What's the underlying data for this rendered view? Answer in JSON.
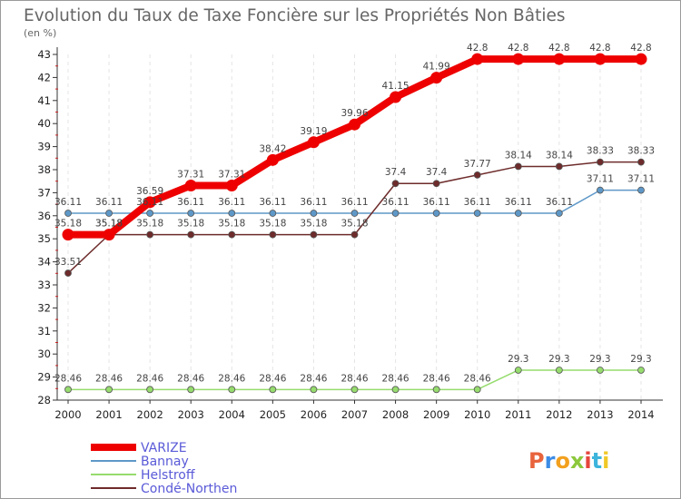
{
  "chart_data": {
    "type": "line",
    "title": "Evolution du Taux de Taxe Foncière sur les Propriétés Non Bâties",
    "subtitle": "(en %)",
    "xlabel": "",
    "ylabel": "",
    "ylim": [
      28,
      43
    ],
    "yticks": [
      "28",
      "29",
      "30",
      "31",
      "32",
      "33",
      "34",
      "35",
      "36",
      "37",
      "38",
      "39",
      "40",
      "41",
      "42",
      "43"
    ],
    "categories": [
      "2000",
      "2001",
      "2002",
      "2003",
      "2004",
      "2005",
      "2006",
      "2007",
      "2008",
      "2009",
      "2010",
      "2011",
      "2012",
      "2013",
      "2014"
    ],
    "grid": "vertical dashed",
    "legend_position": "bottom-left",
    "series": [
      {
        "name": "VARIZE",
        "color": "#ee0000",
        "values": [
          35.18,
          35.18,
          36.59,
          37.31,
          37.31,
          38.42,
          39.19,
          39.96,
          41.15,
          41.99,
          42.8,
          42.8,
          42.8,
          42.8,
          42.8
        ],
        "labels": [
          "35.18",
          "35.18",
          "36.59",
          "37.31",
          "37.31",
          "38.42",
          "39.19",
          "39.96",
          "41.15",
          "41.99",
          "42.8",
          "42.8",
          "42.8",
          "42.8",
          "42.8"
        ]
      },
      {
        "name": "Bannay",
        "color": "#5e98c8",
        "values": [
          36.11,
          36.11,
          36.11,
          36.11,
          36.11,
          36.11,
          36.11,
          36.11,
          36.11,
          36.11,
          36.11,
          36.11,
          36.11,
          37.11,
          37.11
        ],
        "labels": [
          "36.11",
          "36.11",
          "36.11",
          "36.11",
          "36.11",
          "36.11",
          "36.11",
          "36.11",
          "36.11",
          "36.11",
          "36.11",
          "36.11",
          "36.11",
          "37.11",
          "37.11"
        ]
      },
      {
        "name": "Helstroff",
        "color": "#96dc6e",
        "values": [
          28.46,
          28.46,
          28.46,
          28.46,
          28.46,
          28.46,
          28.46,
          28.46,
          28.46,
          28.46,
          28.46,
          29.3,
          29.3,
          29.3,
          29.3
        ],
        "labels": [
          "28.46",
          "28.46",
          "28.46",
          "28.46",
          "28.46",
          "28.46",
          "28.46",
          "28.46",
          "28.46",
          "28.46",
          "28.46",
          "29.3",
          "29.3",
          "29.3",
          "29.3"
        ]
      },
      {
        "name": "Condé-Northen",
        "color": "#6e2b2b",
        "values": [
          33.51,
          35.18,
          35.18,
          35.18,
          35.18,
          35.18,
          35.18,
          35.18,
          37.4,
          37.4,
          37.77,
          38.14,
          38.14,
          38.33,
          38.33
        ],
        "labels": [
          "33.51",
          "35.18",
          "35.18",
          "35.18",
          "35.18",
          "35.18",
          "35.18",
          "35.18",
          "37.4",
          "37.4",
          "37.77",
          "38.14",
          "38.14",
          "38.33",
          "38.33"
        ]
      }
    ]
  },
  "brand": {
    "name": "Proxiti",
    "colors": [
      "#e8643c",
      "#3c8ce6",
      "#f2a01e",
      "#8cc83c",
      "#e6463c",
      "#3cb4dc",
      "#f0c828"
    ]
  }
}
